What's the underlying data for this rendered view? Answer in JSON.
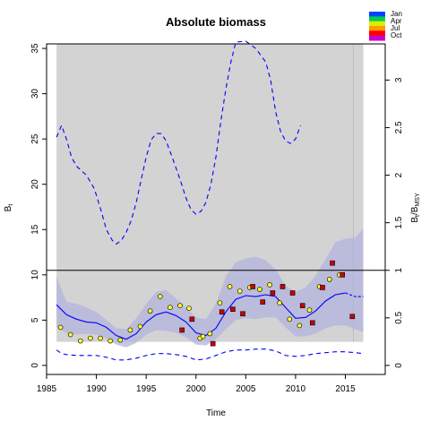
{
  "chart_data": {
    "type": "line",
    "title": "Absolute biomass",
    "xlabel": "Time",
    "ylabel_left": "B",
    "ylabel_left_sub": "t",
    "ylabel_right": "B",
    "ylabel_right_sub": "t",
    "ylabel_right_den": "/B",
    "ylabel_right_den_sub": "MSY",
    "xlim": [
      1985,
      2019
    ],
    "ylim": [
      -1,
      35.5
    ],
    "ylim_right": [
      -0.095,
      3.38
    ],
    "x_ticks": [
      "1985",
      "1990",
      "1995",
      "2000",
      "2005",
      "2010",
      "2015"
    ],
    "y_ticks": [
      "0",
      "5",
      "10",
      "15",
      "20",
      "25",
      "30",
      "35"
    ],
    "y_ticks_right": [
      "0",
      "0.5",
      "1",
      "1.5",
      "2",
      "2.5",
      "3"
    ],
    "shaded_region_x": [
      1986,
      2016.8
    ],
    "shaded_region_y": [
      2.6,
      35.5
    ],
    "bmsy_line": 10.5,
    "forecast_start": 2015.8,
    "colors": {
      "shade": "#d3d3d3",
      "band": "#b3b3dd",
      "line": "#0000ff",
      "point_early": "#ffff33",
      "point_late": "#cc0000"
    },
    "legend": [
      "Jan",
      "Apr",
      "Jul",
      "Oct"
    ],
    "legend_colors": [
      "#0044ff",
      "#00cc55",
      "#ddee00",
      "#ff9900",
      "#ff0000",
      "#cc00cc"
    ],
    "series": [
      {
        "kind": "estimate",
        "x": [
          1986,
          1987,
          1988,
          1989,
          1990,
          1991,
          1992,
          1993,
          1994,
          1995,
          1996,
          1997,
          1998,
          1999,
          2000,
          2001,
          2002,
          2003,
          2004,
          2005,
          2006,
          2007,
          2008,
          2009,
          2010,
          2011,
          2012,
          2013,
          2014,
          2015,
          2016,
          2016.8
        ],
        "values": [
          6.7,
          5.6,
          5.1,
          4.8,
          4.7,
          4.2,
          3.3,
          2.9,
          3.5,
          4.8,
          5.6,
          5.9,
          5.5,
          4.8,
          3.6,
          3.3,
          4.1,
          5.9,
          7.3,
          7.7,
          7.6,
          7.8,
          7.6,
          6.4,
          5.2,
          5.3,
          6.0,
          7.1,
          7.8,
          8.0,
          7.6,
          7.6
        ]
      },
      {
        "kind": "ci_upper",
        "x": [
          1986,
          1987,
          1988,
          1989,
          1990,
          1991,
          1992,
          1993,
          1994,
          1995,
          1996,
          1997,
          1998,
          1999,
          2000,
          2001,
          2002,
          2003,
          2004,
          2005,
          2006,
          2007,
          2008,
          2009,
          2010,
          2011,
          2012,
          2013,
          2014,
          2015,
          2016,
          2016.8
        ],
        "values": [
          9.8,
          7.0,
          6.8,
          6.4,
          5.9,
          5.0,
          4.1,
          4.0,
          5.2,
          6.8,
          8.1,
          8.3,
          7.4,
          6.4,
          5.3,
          5.1,
          6.8,
          9.8,
          11.4,
          11.8,
          12.0,
          11.6,
          10.6,
          8.8,
          8.1,
          8.6,
          9.9,
          11.7,
          13.6,
          14.0,
          14.1,
          15.1
        ]
      },
      {
        "kind": "ci_lower",
        "x": [
          1986,
          1987,
          1988,
          1989,
          1990,
          1991,
          1992,
          1993,
          1994,
          1995,
          1996,
          1997,
          1998,
          1999,
          2000,
          2001,
          2002,
          2003,
          2004,
          2005,
          2006,
          2007,
          2008,
          2009,
          2010,
          2011,
          2012,
          2013,
          2014,
          2015,
          2016,
          2016.8
        ],
        "values": [
          4.2,
          3.6,
          3.4,
          3.5,
          3.4,
          3.0,
          2.3,
          2.0,
          2.5,
          3.4,
          3.9,
          3.8,
          3.6,
          3.1,
          2.3,
          2.2,
          2.9,
          4.0,
          5.0,
          5.2,
          5.1,
          5.3,
          5.3,
          4.2,
          3.2,
          3.2,
          3.5,
          4.1,
          4.4,
          4.4,
          4.0,
          3.7
        ]
      },
      {
        "kind": "pred_upper",
        "x": [
          1986,
          1986.5,
          1987,
          1987.5,
          1988,
          1989,
          1989.8,
          1990.5,
          1991,
          1991.6,
          1992,
          1992.5,
          1993,
          1993.5,
          1994,
          1994.5,
          1995,
          1995.5,
          1996,
          1996.5,
          1997,
          1997.5,
          1998,
          1998.5,
          1999,
          1999.5,
          2000,
          2000.5,
          2001,
          2001.5,
          2002,
          2002.5,
          2003,
          2003.5,
          2004,
          2005,
          2006,
          2007,
          2007.5,
          2008,
          2008.5,
          2009,
          2009.5,
          2010,
          2010.5
        ],
        "values": [
          25.2,
          26.5,
          25.0,
          23.0,
          22.0,
          21.0,
          19.5,
          17.0,
          15.0,
          13.8,
          13.4,
          13.8,
          14.7,
          16.0,
          18.0,
          20.5,
          23.0,
          24.9,
          25.6,
          25.6,
          24.8,
          23.3,
          21.8,
          20.2,
          18.5,
          17.2,
          16.7,
          17.0,
          18.0,
          20.0,
          23.0,
          27.0,
          30.5,
          33.5,
          35.7,
          35.8,
          35.0,
          33.5,
          31.5,
          28.0,
          25.8,
          24.8,
          24.5,
          25.0,
          26.5
        ]
      },
      {
        "kind": "pred_lower",
        "x": [
          1986,
          1986.5,
          1987,
          1988,
          1989,
          1990,
          1991,
          1992,
          1993,
          1994,
          1995,
          1996,
          1997,
          1998,
          1999,
          2000,
          2001,
          2002,
          2003,
          2004,
          2005,
          2006,
          2007,
          2008,
          2009,
          2010,
          2011,
          2012,
          2013,
          2014,
          2015,
          2016,
          2016.8
        ],
        "values": [
          1.7,
          1.3,
          1.2,
          1.1,
          1.1,
          1.1,
          0.9,
          0.6,
          0.6,
          0.8,
          1.1,
          1.3,
          1.3,
          1.2,
          1.0,
          0.6,
          0.7,
          1.1,
          1.5,
          1.7,
          1.7,
          1.8,
          1.8,
          1.6,
          1.1,
          1.0,
          1.1,
          1.3,
          1.4,
          1.5,
          1.5,
          1.4,
          1.3
        ]
      }
    ],
    "observations": [
      {
        "x": 1986.4,
        "y": 4.2,
        "c": "early"
      },
      {
        "x": 1987.4,
        "y": 3.4,
        "c": "early"
      },
      {
        "x": 1988.4,
        "y": 2.7,
        "c": "early"
      },
      {
        "x": 1989.4,
        "y": 3.0,
        "c": "early"
      },
      {
        "x": 1990.4,
        "y": 3.0,
        "c": "early"
      },
      {
        "x": 1991.4,
        "y": 2.7,
        "c": "early"
      },
      {
        "x": 1992.4,
        "y": 2.8,
        "c": "early"
      },
      {
        "x": 1993.4,
        "y": 3.9,
        "c": "early"
      },
      {
        "x": 1994.4,
        "y": 4.3,
        "c": "early"
      },
      {
        "x": 1995.4,
        "y": 6.0,
        "c": "early"
      },
      {
        "x": 1996.4,
        "y": 7.6,
        "c": "early"
      },
      {
        "x": 1997.4,
        "y": 6.4,
        "c": "early"
      },
      {
        "x": 1998.4,
        "y": 6.6,
        "c": "early"
      },
      {
        "x": 1999.3,
        "y": 6.3,
        "c": "early"
      },
      {
        "x": 1998.6,
        "y": 3.9,
        "c": "late"
      },
      {
        "x": 1999.6,
        "y": 5.1,
        "c": "late"
      },
      {
        "x": 2000.4,
        "y": 3.0,
        "c": "early"
      },
      {
        "x": 2000.7,
        "y": 3.2,
        "c": "early"
      },
      {
        "x": 2001.4,
        "y": 3.5,
        "c": "early"
      },
      {
        "x": 2001.7,
        "y": 2.4,
        "c": "late"
      },
      {
        "x": 2002.4,
        "y": 6.9,
        "c": "early"
      },
      {
        "x": 2002.6,
        "y": 5.9,
        "c": "late"
      },
      {
        "x": 2003.4,
        "y": 8.7,
        "c": "early"
      },
      {
        "x": 2003.7,
        "y": 6.2,
        "c": "late"
      },
      {
        "x": 2004.4,
        "y": 8.2,
        "c": "early"
      },
      {
        "x": 2004.7,
        "y": 5.7,
        "c": "late"
      },
      {
        "x": 2005.4,
        "y": 8.6,
        "c": "early"
      },
      {
        "x": 2005.7,
        "y": 8.7,
        "c": "late"
      },
      {
        "x": 2006.4,
        "y": 8.4,
        "c": "early"
      },
      {
        "x": 2006.7,
        "y": 7.0,
        "c": "late"
      },
      {
        "x": 2007.4,
        "y": 8.9,
        "c": "early"
      },
      {
        "x": 2007.7,
        "y": 8.0,
        "c": "late"
      },
      {
        "x": 2008.4,
        "y": 6.9,
        "c": "early"
      },
      {
        "x": 2008.7,
        "y": 8.7,
        "c": "late"
      },
      {
        "x": 2009.4,
        "y": 5.1,
        "c": "early"
      },
      {
        "x": 2009.7,
        "y": 8.0,
        "c": "late"
      },
      {
        "x": 2010.4,
        "y": 4.4,
        "c": "early"
      },
      {
        "x": 2010.7,
        "y": 6.6,
        "c": "late"
      },
      {
        "x": 2011.4,
        "y": 6.1,
        "c": "early"
      },
      {
        "x": 2011.7,
        "y": 4.7,
        "c": "late"
      },
      {
        "x": 2012.4,
        "y": 8.7,
        "c": "early"
      },
      {
        "x": 2012.7,
        "y": 8.6,
        "c": "late"
      },
      {
        "x": 2013.4,
        "y": 9.5,
        "c": "early"
      },
      {
        "x": 2013.7,
        "y": 11.3,
        "c": "late"
      },
      {
        "x": 2014.4,
        "y": 10.0,
        "c": "early"
      },
      {
        "x": 2014.7,
        "y": 10.0,
        "c": "late"
      },
      {
        "x": 2015.7,
        "y": 5.4,
        "c": "late"
      }
    ]
  }
}
